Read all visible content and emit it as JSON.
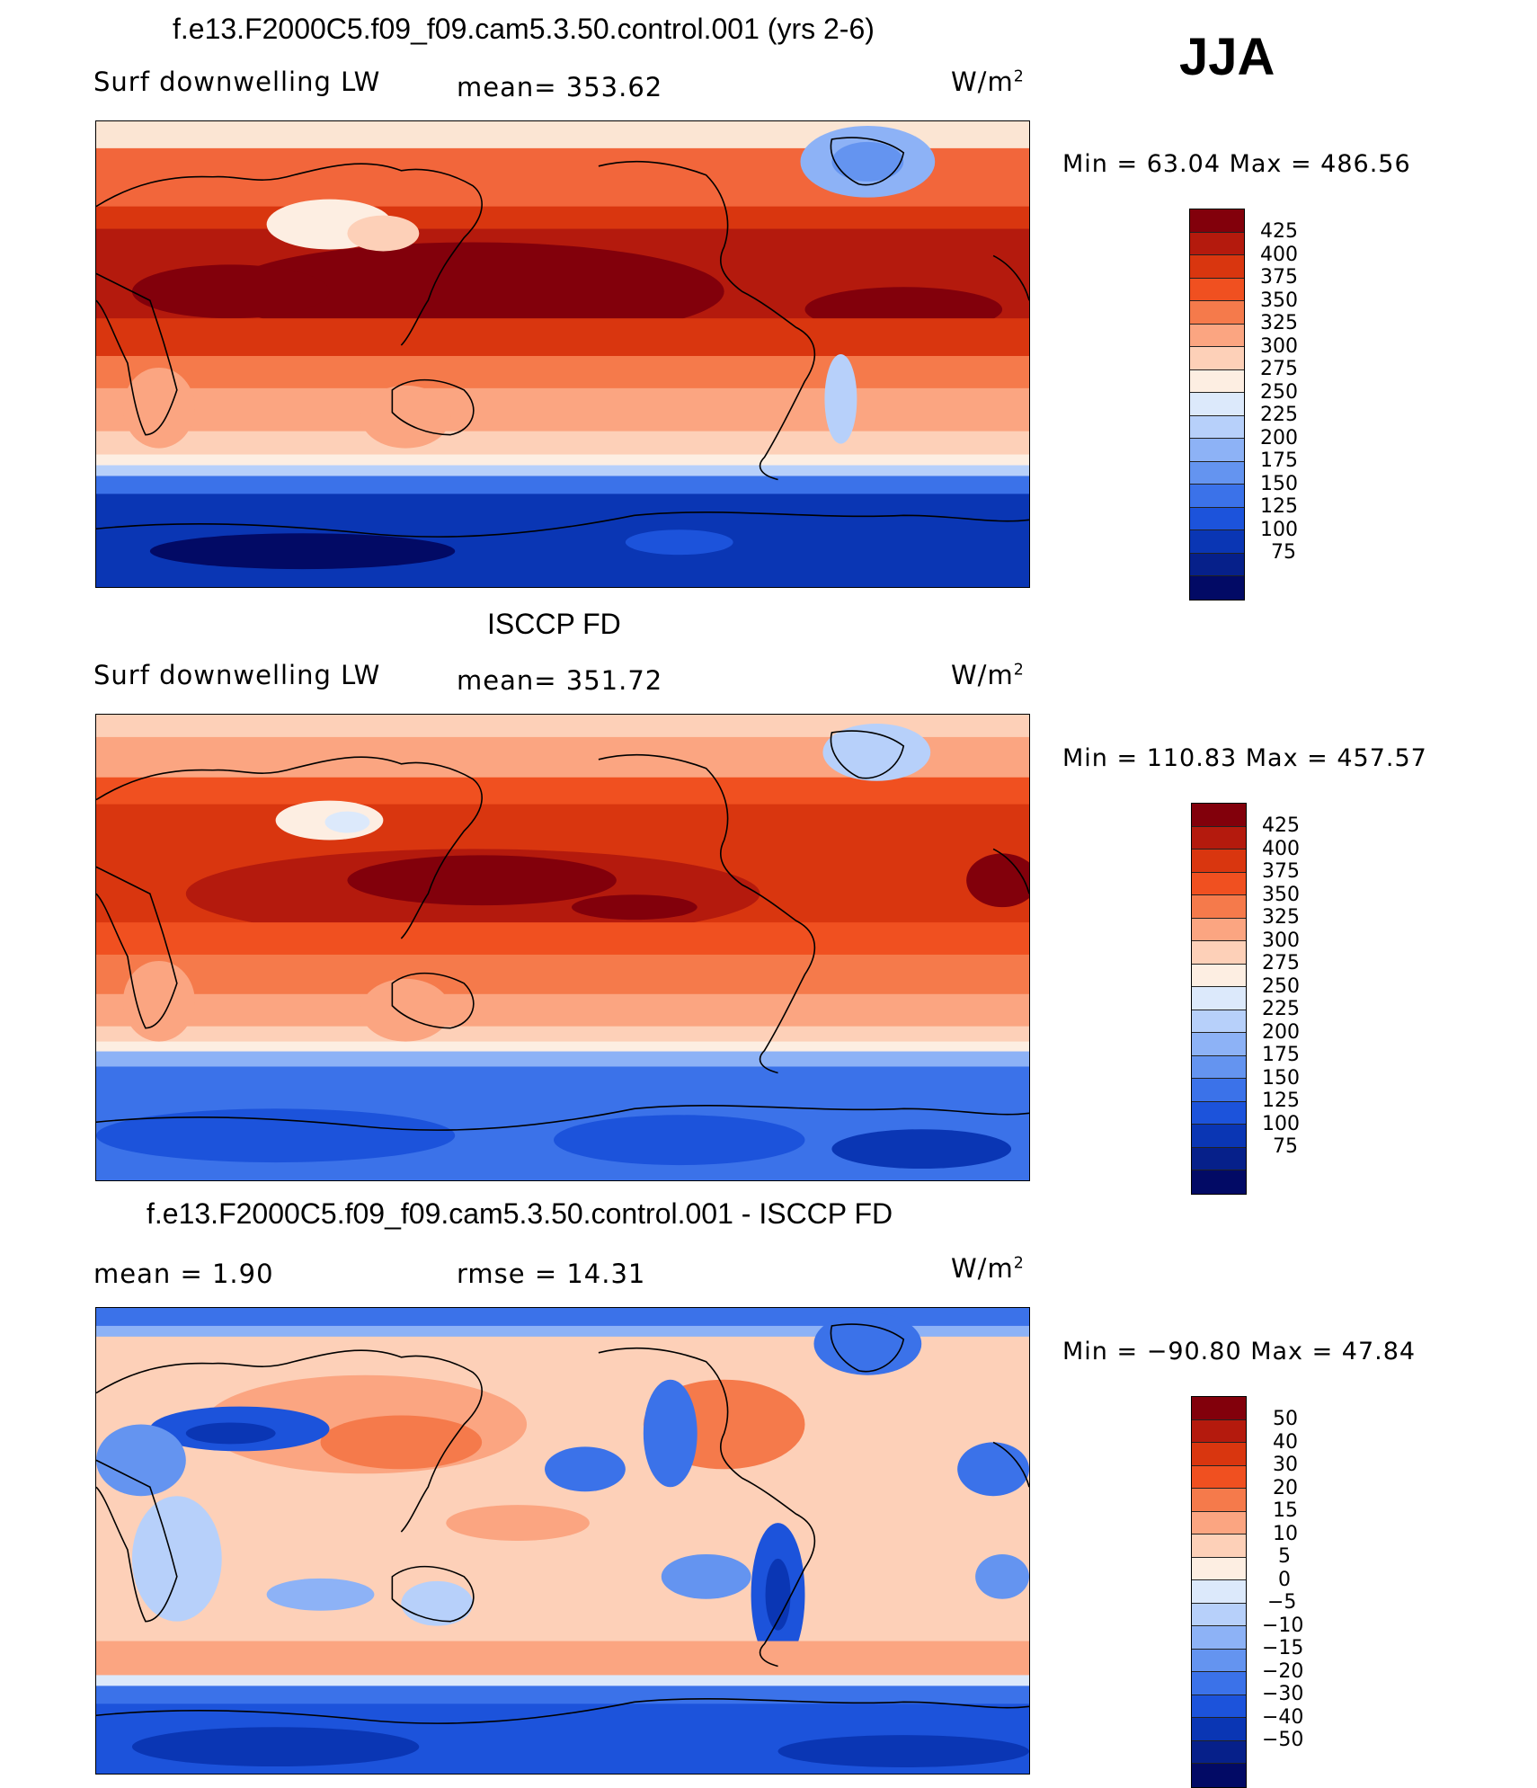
{
  "season": "JJA",
  "colors": {
    "abs_scale": [
      "#82000b",
      "#b41a0d",
      "#d9360f",
      "#f05020",
      "#f57a4b",
      "#fba581",
      "#fdd0b8",
      "#fdeee2",
      "#dce9fb",
      "#b7d0fa",
      "#8db2f6",
      "#6494f0",
      "#3b72e9",
      "#1c53db",
      "#0a36b4",
      "#06208a",
      "#020a65"
    ],
    "diff_scale": [
      "#82000b",
      "#b41a0d",
      "#d9360f",
      "#f05020",
      "#f57a4b",
      "#fba581",
      "#fdd0b8",
      "#fdeee2",
      "#dce9fb",
      "#b7d0fa",
      "#8db2f6",
      "#6494f0",
      "#3b72e9",
      "#1c53db",
      "#0a36b4",
      "#06208a",
      "#020a65"
    ]
  },
  "panels": [
    {
      "title": "f.e13.F2000C5.f09_f09.cam5.3.50.control.001 (yrs 2-6)",
      "left": "Surf  downwelling  LW",
      "center": "mean=  353.62",
      "units": "W/m",
      "units_sup": "2",
      "minmax": "Min  =    63.04  Max  =  486.56",
      "ticks": [
        "425",
        "400",
        "375",
        "350",
        "325",
        "300",
        "275",
        "250",
        "225",
        "200",
        "175",
        "150",
        "125",
        "100",
        "75"
      ]
    },
    {
      "title": "ISCCP FD",
      "left": "Surf  downwelling  LW",
      "center": "mean=  351.72",
      "units": "W/m",
      "units_sup": "2",
      "minmax": "Min  =  110.83  Max  =  457.57",
      "ticks": [
        "425",
        "400",
        "375",
        "350",
        "325",
        "300",
        "275",
        "250",
        "225",
        "200",
        "175",
        "150",
        "125",
        "100",
        "75"
      ]
    },
    {
      "title": "f.e13.F2000C5.f09_f09.cam5.3.50.control.001 - ISCCP FD",
      "left": "mean  =      1.90",
      "center": "rmse  =      14.31",
      "units": "W/m",
      "units_sup": "2",
      "minmax": "Min  =  −90.80  Max  =    47.84",
      "ticks": [
        "50",
        "40",
        "30",
        "20",
        "15",
        "10",
        "5",
        "0",
        "−5",
        "−10",
        "−15",
        "−20",
        "−30",
        "−40",
        "−50"
      ]
    }
  ]
}
